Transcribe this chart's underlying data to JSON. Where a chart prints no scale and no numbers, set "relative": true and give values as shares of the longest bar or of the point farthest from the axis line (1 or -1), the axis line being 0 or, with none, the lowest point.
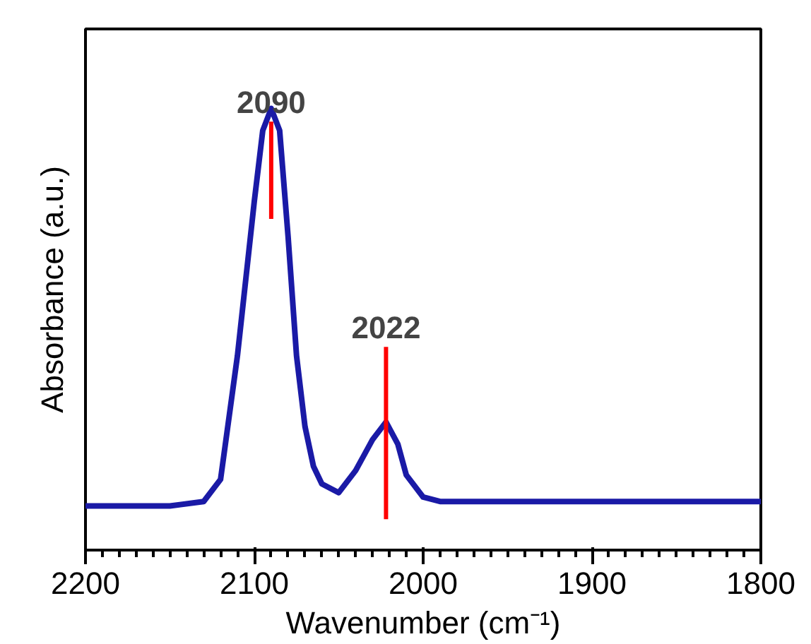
{
  "chart_data": {
    "type": "line",
    "xlabel": "Wavenumber (cm⁻¹)",
    "ylabel": "Absorbance (a.u.)",
    "relative": true,
    "x": [
      2200,
      2150,
      2130,
      2120,
      2110,
      2100,
      2095,
      2090,
      2085,
      2080,
      2075,
      2070,
      2065,
      2060,
      2050,
      2040,
      2030,
      2022,
      2015,
      2010,
      2000,
      1990,
      1900,
      1800
    ],
    "series": [
      {
        "color": "#1a1aa6",
        "values": [
          0.1,
          0.1,
          0.11,
          0.16,
          0.44,
          0.79,
          0.95,
          1.0,
          0.95,
          0.71,
          0.44,
          0.28,
          0.19,
          0.15,
          0.13,
          0.18,
          0.25,
          0.29,
          0.24,
          0.17,
          0.12,
          0.11,
          0.11,
          0.11
        ]
      }
    ],
    "xlim": [
      2200,
      1800
    ],
    "xticks": [
      2200,
      2100,
      2000,
      1900,
      1800
    ],
    "ref_lines": [
      {
        "axis": "x",
        "value": 2090,
        "label": "2090",
        "color": "#ff0000"
      },
      {
        "axis": "x",
        "value": 2022,
        "label": "2022",
        "color": "#ff0000"
      }
    ],
    "grid": false,
    "tick_labels": "x"
  }
}
